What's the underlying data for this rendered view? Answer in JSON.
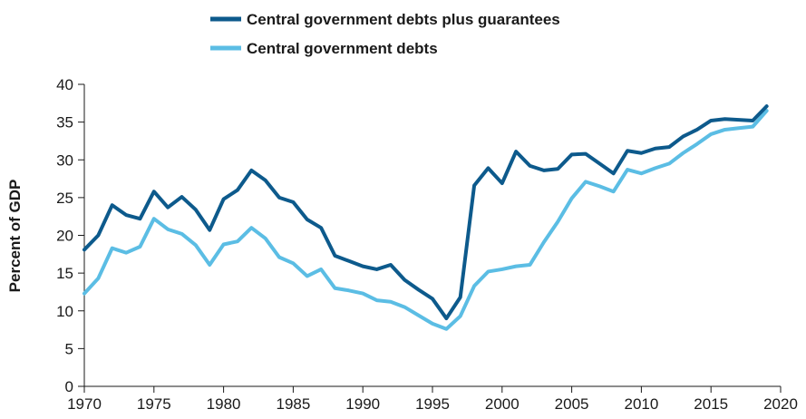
{
  "chart_data": {
    "type": "line",
    "title": "",
    "xlabel": "",
    "ylabel": "Percent of GDP",
    "xlim": [
      1970,
      2020
    ],
    "ylim": [
      0,
      40
    ],
    "x_ticks": [
      1970,
      1975,
      1980,
      1985,
      1990,
      1995,
      2000,
      2005,
      2010,
      2015,
      2020
    ],
    "y_ticks": [
      0,
      5,
      10,
      15,
      20,
      25,
      30,
      35,
      40
    ],
    "grid": false,
    "legend_position": "top-center",
    "x": [
      1970,
      1971,
      1972,
      1973,
      1974,
      1975,
      1976,
      1977,
      1978,
      1979,
      1980,
      1981,
      1982,
      1983,
      1984,
      1985,
      1986,
      1987,
      1988,
      1989,
      1990,
      1991,
      1992,
      1993,
      1994,
      1995,
      1996,
      1997,
      1998,
      1999,
      2000,
      2001,
      2002,
      2003,
      2004,
      2005,
      2006,
      2007,
      2008,
      2009,
      2010,
      2011,
      2012,
      2013,
      2014,
      2015,
      2016,
      2017,
      2018,
      2019
    ],
    "series": [
      {
        "name": "Central government debts plus guarantees",
        "color": "#0d5a8c",
        "values": [
          18.1,
          20.0,
          24.0,
          22.7,
          22.2,
          25.8,
          23.7,
          25.1,
          23.4,
          20.7,
          24.8,
          26.0,
          28.6,
          27.3,
          25.0,
          24.4,
          22.1,
          21.0,
          17.3,
          16.6,
          15.9,
          15.5,
          16.1,
          14.1,
          12.8,
          11.6,
          9.0,
          11.8,
          26.6,
          28.9,
          26.9,
          31.1,
          29.2,
          28.6,
          28.8,
          30.7,
          30.8,
          29.5,
          28.2,
          31.2,
          30.9,
          31.5,
          31.7,
          33.1,
          34.0,
          35.2,
          35.4,
          35.3,
          35.2,
          37.1
        ]
      },
      {
        "name": "Central government debts",
        "color": "#5bbde4",
        "values": [
          12.3,
          14.3,
          18.3,
          17.7,
          18.5,
          22.2,
          20.8,
          20.2,
          18.7,
          16.1,
          18.8,
          19.2,
          21.0,
          19.6,
          17.1,
          16.3,
          14.6,
          15.5,
          13.0,
          12.7,
          12.3,
          11.4,
          11.2,
          10.5,
          9.4,
          8.3,
          7.6,
          9.3,
          13.3,
          15.2,
          15.5,
          15.9,
          16.1,
          19.1,
          21.8,
          24.9,
          27.1,
          26.5,
          25.8,
          28.7,
          28.2,
          28.9,
          29.5,
          30.9,
          32.1,
          33.4,
          34.0,
          34.2,
          34.4,
          36.5
        ]
      }
    ]
  }
}
